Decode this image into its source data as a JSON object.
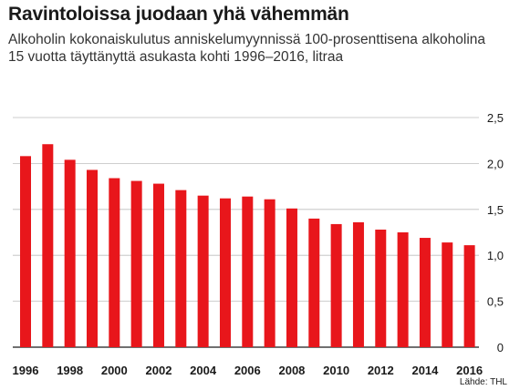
{
  "title": "Ravintoloissa juodaan yhä vähemmän",
  "subtitle": "Alkoholin kokonaiskulutus anniskelumyynnissä 100-prosenttisena alkoholina 15 vuotta täyttänyttä asukasta kohti 1996–2016, litraa",
  "source": "Lähde: THL",
  "colors": {
    "bar": "#e8161b",
    "grid": "#bdbdbd",
    "axis": "#1a1a1a"
  },
  "chart_data": {
    "type": "bar",
    "title": "Ravintoloissa juodaan yhä vähemmän",
    "xlabel": "",
    "ylabel": "",
    "categories": [
      "1996",
      "1997",
      "1998",
      "1999",
      "2000",
      "2001",
      "2002",
      "2003",
      "2004",
      "2005",
      "2006",
      "2007",
      "2008",
      "2009",
      "2010",
      "2011",
      "2012",
      "2013",
      "2014",
      "2015",
      "2016"
    ],
    "values": [
      2.08,
      2.21,
      2.04,
      1.93,
      1.84,
      1.81,
      1.78,
      1.71,
      1.65,
      1.62,
      1.64,
      1.61,
      1.51,
      1.4,
      1.34,
      1.36,
      1.28,
      1.25,
      1.19,
      1.14,
      1.11
    ],
    "x_tick_labels": [
      "1996",
      "1998",
      "2000",
      "2002",
      "2004",
      "2006",
      "2008",
      "2010",
      "2012",
      "2014",
      "2016"
    ],
    "y_ticks": [
      {
        "value": 0,
        "label": "0"
      },
      {
        "value": 0.5,
        "label": "0,5"
      },
      {
        "value": 1.0,
        "label": "1,0"
      },
      {
        "value": 1.5,
        "label": "1,5"
      },
      {
        "value": 2.0,
        "label": "2,0"
      },
      {
        "value": 2.5,
        "label": "2,5"
      }
    ],
    "ylim": [
      0,
      2.5
    ],
    "grid": true,
    "y_axis_position": "right"
  }
}
